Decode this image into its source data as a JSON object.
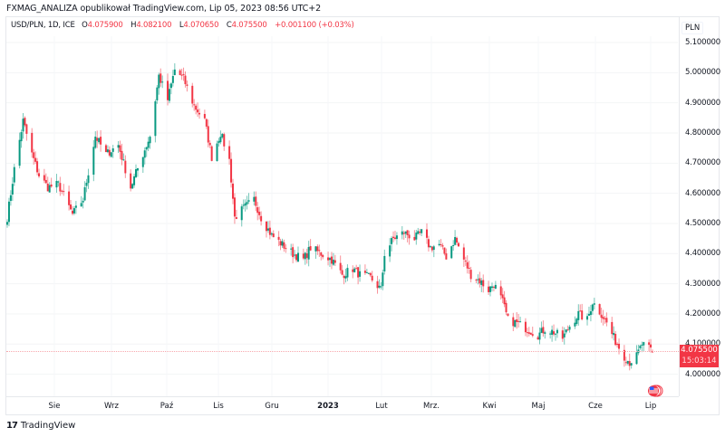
{
  "header": {
    "published_line": "FXMAG_ANALIZA opublikował TradingView.com, Lip 05, 2023 08:56 UTC+2"
  },
  "legend": {
    "symbol": "USD/PLN, 1D, ICE",
    "open_label": "O",
    "open": "4.075900",
    "high_label": "H",
    "high": "4.082100",
    "low_label": "L",
    "low": "4.070650",
    "close_label": "C",
    "close": "4.075500",
    "change": "+0.001100 (+0.03%)"
  },
  "price_scale": {
    "currency": "PLN",
    "ticks": [
      "5.100000",
      "5.000000",
      "4.900000",
      "4.800000",
      "4.700000",
      "4.600000",
      "4.500000",
      "4.400000",
      "4.300000",
      "4.200000",
      "4.100000",
      "4.000000"
    ]
  },
  "current_price": {
    "value": "4.075500",
    "countdown": "15:03:14"
  },
  "time_scale": {
    "labels": [
      "Sie",
      "Wrz",
      "Paź",
      "Lis",
      "Gru",
      "2023",
      "Lut",
      "Mrz.",
      "Kwi",
      "Maj",
      "Cze",
      "Lip"
    ]
  },
  "branding": {
    "logo_mark": "17",
    "logo_text": "TradingView"
  },
  "colors": {
    "up": "#089981",
    "down": "#f23645",
    "price_line": "#f7a8ae"
  },
  "chart_data": {
    "type": "candlestick",
    "title": "USD/PLN, 1D, ICE",
    "xlabel": "",
    "ylabel": "PLN",
    "ylim": [
      3.92,
      5.12
    ],
    "grid": true,
    "x_tick_labels": [
      "Sie",
      "Wrz",
      "Paź",
      "Lis",
      "Gru",
      "2023",
      "Lut",
      "Mrz.",
      "Kwi",
      "Maj",
      "Cze",
      "Lip"
    ],
    "y_tick_labels": [
      "5.100000",
      "5.000000",
      "4.900000",
      "4.800000",
      "4.700000",
      "4.600000",
      "4.500000",
      "4.400000",
      "4.300000",
      "4.200000",
      "4.100000",
      "4.000000"
    ],
    "last_candle": {
      "open": 4.0759,
      "high": 4.0821,
      "low": 4.07065,
      "close": 4.0755,
      "change": 0.0011,
      "change_pct": 0.03
    },
    "weekly_close_path": [
      {
        "x": "2022-07-04",
        "close": 4.52
      },
      {
        "x": "2022-07-08",
        "close": 4.68
      },
      {
        "x": "2022-07-13",
        "close": 4.84
      },
      {
        "x": "2022-07-18",
        "close": 4.73
      },
      {
        "x": "2022-07-22",
        "close": 4.66
      },
      {
        "x": "2022-07-27",
        "close": 4.62
      },
      {
        "x": "2022-08-02",
        "close": 4.63
      },
      {
        "x": "2022-08-10",
        "close": 4.53
      },
      {
        "x": "2022-08-16",
        "close": 4.58
      },
      {
        "x": "2022-08-23",
        "close": 4.79
      },
      {
        "x": "2022-08-29",
        "close": 4.73
      },
      {
        "x": "2022-09-05",
        "close": 4.76
      },
      {
        "x": "2022-09-12",
        "close": 4.62
      },
      {
        "x": "2022-09-19",
        "close": 4.73
      },
      {
        "x": "2022-09-23",
        "close": 4.79
      },
      {
        "x": "2022-09-28",
        "close": 4.99
      },
      {
        "x": "2022-10-03",
        "close": 4.91
      },
      {
        "x": "2022-10-07",
        "close": 5.01
      },
      {
        "x": "2022-10-12",
        "close": 4.98
      },
      {
        "x": "2022-10-18",
        "close": 4.89
      },
      {
        "x": "2022-10-24",
        "close": 4.84
      },
      {
        "x": "2022-10-28",
        "close": 4.72
      },
      {
        "x": "2022-11-02",
        "close": 4.8
      },
      {
        "x": "2022-11-07",
        "close": 4.71
      },
      {
        "x": "2022-11-10",
        "close": 4.52
      },
      {
        "x": "2022-11-15",
        "close": 4.55
      },
      {
        "x": "2022-11-21",
        "close": 4.58
      },
      {
        "x": "2022-11-25",
        "close": 4.52
      },
      {
        "x": "2022-12-01",
        "close": 4.46
      },
      {
        "x": "2022-12-07",
        "close": 4.43
      },
      {
        "x": "2022-12-13",
        "close": 4.4
      },
      {
        "x": "2022-12-19",
        "close": 4.38
      },
      {
        "x": "2022-12-23",
        "close": 4.42
      },
      {
        "x": "2022-12-29",
        "close": 4.4
      },
      {
        "x": "2023-01-04",
        "close": 4.38
      },
      {
        "x": "2023-01-10",
        "close": 4.33
      },
      {
        "x": "2023-01-16",
        "close": 4.35
      },
      {
        "x": "2023-01-20",
        "close": 4.33
      },
      {
        "x": "2023-01-26",
        "close": 4.32
      },
      {
        "x": "2023-02-01",
        "close": 4.28
      },
      {
        "x": "2023-02-03",
        "close": 4.4
      },
      {
        "x": "2023-02-08",
        "close": 4.45
      },
      {
        "x": "2023-02-14",
        "close": 4.47
      },
      {
        "x": "2023-02-20",
        "close": 4.45
      },
      {
        "x": "2023-02-24",
        "close": 4.47
      },
      {
        "x": "2023-03-01",
        "close": 4.42
      },
      {
        "x": "2023-03-06",
        "close": 4.43
      },
      {
        "x": "2023-03-10",
        "close": 4.39
      },
      {
        "x": "2023-03-15",
        "close": 4.45
      },
      {
        "x": "2023-03-20",
        "close": 4.38
      },
      {
        "x": "2023-03-24",
        "close": 4.33
      },
      {
        "x": "2023-03-29",
        "close": 4.31
      },
      {
        "x": "2023-04-03",
        "close": 4.28
      },
      {
        "x": "2023-04-06",
        "close": 4.3
      },
      {
        "x": "2023-04-11",
        "close": 4.24
      },
      {
        "x": "2023-04-14",
        "close": 4.18
      },
      {
        "x": "2023-04-19",
        "close": 4.17
      },
      {
        "x": "2023-04-25",
        "close": 4.15
      },
      {
        "x": "2023-05-01",
        "close": 4.13
      },
      {
        "x": "2023-05-05",
        "close": 4.15
      },
      {
        "x": "2023-05-10",
        "close": 4.14
      },
      {
        "x": "2023-05-15",
        "close": 4.12
      },
      {
        "x": "2023-05-19",
        "close": 4.16
      },
      {
        "x": "2023-05-24",
        "close": 4.2
      },
      {
        "x": "2023-05-29",
        "close": 4.18
      },
      {
        "x": "2023-06-01",
        "close": 4.24
      },
      {
        "x": "2023-06-06",
        "close": 4.2
      },
      {
        "x": "2023-06-09",
        "close": 4.17
      },
      {
        "x": "2023-06-14",
        "close": 4.11
      },
      {
        "x": "2023-06-19",
        "close": 4.06
      },
      {
        "x": "2023-06-22",
        "close": 4.04
      },
      {
        "x": "2023-06-26",
        "close": 4.06
      },
      {
        "x": "2023-06-29",
        "close": 4.1
      },
      {
        "x": "2023-07-05",
        "close": 4.0755
      }
    ]
  }
}
